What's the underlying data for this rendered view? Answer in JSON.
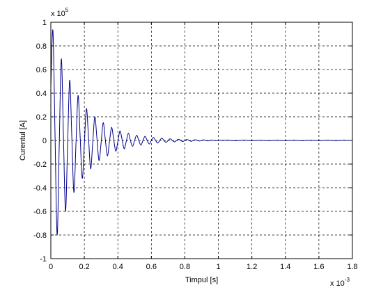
{
  "chart_data": {
    "type": "line",
    "xlabel": "Timpul [s]",
    "ylabel": "Curentul [A]",
    "x_multiplier": {
      "base": "x 10",
      "exponent": "-3"
    },
    "y_multiplier": {
      "base": "x 10",
      "exponent": "5"
    },
    "xlim": [
      0,
      1.8
    ],
    "ylim": [
      -1,
      1
    ],
    "x_ticks": [
      0,
      0.2,
      0.4,
      0.6,
      0.8,
      1,
      1.2,
      1.4,
      1.6,
      1.8
    ],
    "x_tick_labels": [
      "0",
      "0.2",
      "0.4",
      "0.6",
      "0.8",
      "1",
      "1.2",
      "1.4",
      "1.6",
      "1.8"
    ],
    "y_ticks": [
      -1,
      -0.8,
      -0.6,
      -0.4,
      -0.2,
      0,
      0.2,
      0.4,
      0.6,
      0.8,
      1
    ],
    "y_tick_labels": [
      "-1",
      "-0.8",
      "-0.6",
      "-0.4",
      "-0.2",
      "0",
      "0.2",
      "0.4",
      "0.6",
      "0.8",
      "1"
    ],
    "grid": true,
    "line_color": "#00008b",
    "series": [
      {
        "x": [
          0,
          0.0125,
          0.025,
          0.0375,
          0.05,
          0.0625,
          0.075,
          0.0875,
          0.1,
          0.1125,
          0.125,
          0.1375,
          0.15,
          0.1625,
          0.175,
          0.1875,
          0.2,
          0.2125,
          0.225,
          0.2375,
          0.25,
          0.2625,
          0.275,
          0.2875,
          0.3,
          0.3125,
          0.325,
          0.3375,
          0.35,
          0.3625,
          0.375,
          0.3875,
          0.4,
          0.4125,
          0.425,
          0.4375,
          0.45,
          0.4625,
          0.475,
          0.4875,
          0.5,
          0.5125,
          0.525,
          0.5375,
          0.55,
          0.5625,
          0.575,
          0.5875,
          0.6,
          0.6125,
          0.625,
          0.6375,
          0.65,
          0.6625,
          0.675,
          0.6875,
          0.7,
          0.7125,
          0.725,
          0.7375,
          0.75,
          0.7625,
          0.775,
          0.7875,
          0.8,
          0.8125,
          0.825,
          0.8375,
          0.85,
          0.8625,
          0.875,
          0.8875,
          0.9,
          0.9125,
          0.925,
          0.9375,
          0.95,
          0.9625,
          0.975,
          0.9875,
          1.0,
          1.05,
          1.1,
          1.15,
          1.2,
          1.25,
          1.3,
          1.35,
          1.4,
          1.45,
          1.5,
          1.55,
          1.6,
          1.65,
          1.7,
          1.75,
          1.78
        ],
        "y": [
          0.45,
          0.93,
          0.05,
          -0.8,
          -0.05,
          0.69,
          0.05,
          -0.6,
          -0.04,
          0.51,
          0.04,
          -0.44,
          -0.03,
          0.38,
          0.03,
          -0.32,
          -0.03,
          0.27,
          0.02,
          -0.24,
          -0.02,
          0.2,
          0.02,
          -0.17,
          -0.02,
          0.15,
          0.01,
          -0.13,
          -0.01,
          0.11,
          0.01,
          -0.09,
          -0.01,
          0.08,
          0.01,
          -0.07,
          -0.01,
          0.06,
          0.0,
          -0.05,
          0.0,
          0.045,
          0.0,
          -0.04,
          0.0,
          0.035,
          0.0,
          -0.03,
          0.0,
          0.025,
          0.0,
          -0.022,
          0.0,
          0.019,
          0.0,
          -0.016,
          0.0,
          0.014,
          0.0,
          -0.012,
          0.0,
          0.01,
          0.0,
          -0.009,
          0.0,
          0.008,
          0.0,
          -0.007,
          0.0,
          0.006,
          0.0,
          -0.005,
          0.0,
          0.005,
          0.0,
          -0.004,
          0.0,
          0.004,
          0.0,
          -0.003,
          0.0,
          0.003,
          -0.003,
          0.003,
          -0.002,
          0.002,
          -0.002,
          0.002,
          -0.002,
          0.002,
          -0.002,
          0.002,
          -0.002,
          0.002,
          -0.002,
          0.002,
          0.0
        ]
      }
    ]
  }
}
